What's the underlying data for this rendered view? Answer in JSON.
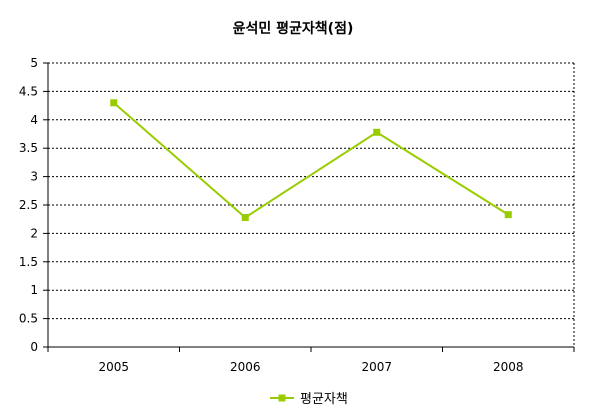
{
  "chart_data": {
    "type": "line",
    "title": "윤석민 평균자책(점)",
    "categories": [
      "2005",
      "2006",
      "2007",
      "2008"
    ],
    "series": [
      {
        "name": "평균자책",
        "values": [
          4.3,
          2.28,
          3.78,
          2.33
        ],
        "color": "#99cc00"
      }
    ],
    "ylim": [
      0,
      5
    ],
    "yticks": [
      "0",
      "0.5",
      "1",
      "1.5",
      "2",
      "2.5",
      "3",
      "3.5",
      "4",
      "4.5",
      "5"
    ],
    "grid": true,
    "legend_position": "bottom",
    "xlabel": "",
    "ylabel": ""
  }
}
